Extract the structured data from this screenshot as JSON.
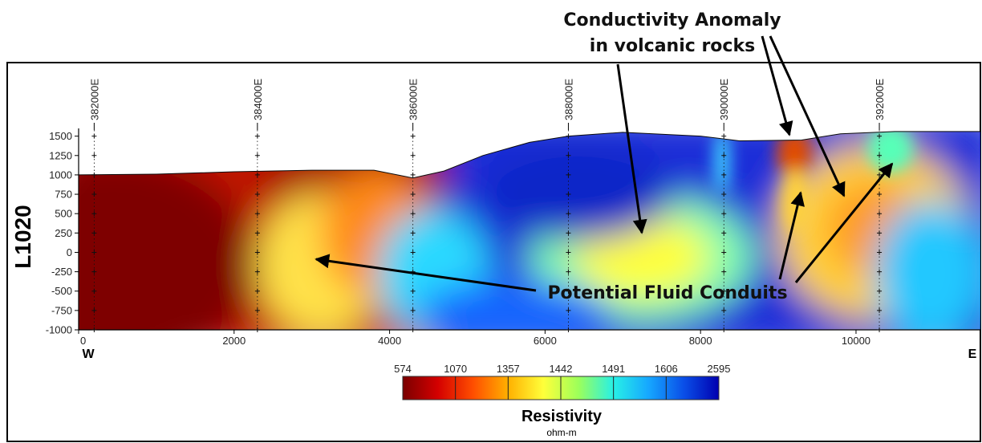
{
  "chart_data": {
    "type": "heatmap",
    "line_label": "L1020",
    "x": {
      "ticks": [
        0,
        2000,
        4000,
        6000,
        8000,
        10000
      ],
      "range": [
        0,
        11600
      ],
      "left_label": "W",
      "right_label": "E"
    },
    "y": {
      "ticks": [
        1500,
        1250,
        1000,
        750,
        500,
        250,
        0,
        -250,
        -500,
        -750,
        -1000
      ],
      "range": [
        -1000,
        1600
      ]
    },
    "easting_labels": [
      {
        "label": "382000E",
        "x": 200
      },
      {
        "label": "384000E",
        "x": 2300
      },
      {
        "label": "386000E",
        "x": 4300
      },
      {
        "label": "388000E",
        "x": 6300
      },
      {
        "label": "390000E",
        "x": 8300
      },
      {
        "label": "392000E",
        "x": 10300
      }
    ],
    "station_x": [
      200,
      2300,
      4300,
      6300,
      8300,
      10300
    ],
    "topography": [
      {
        "x": 0,
        "y": 1000
      },
      {
        "x": 1000,
        "y": 1010
      },
      {
        "x": 2000,
        "y": 1040
      },
      {
        "x": 3000,
        "y": 1060
      },
      {
        "x": 3800,
        "y": 1060
      },
      {
        "x": 4300,
        "y": 960
      },
      {
        "x": 4700,
        "y": 1050
      },
      {
        "x": 5200,
        "y": 1250
      },
      {
        "x": 5800,
        "y": 1420
      },
      {
        "x": 6300,
        "y": 1500
      },
      {
        "x": 7000,
        "y": 1550
      },
      {
        "x": 8000,
        "y": 1500
      },
      {
        "x": 8500,
        "y": 1440
      },
      {
        "x": 9300,
        "y": 1450
      },
      {
        "x": 9800,
        "y": 1530
      },
      {
        "x": 10500,
        "y": 1560
      },
      {
        "x": 11600,
        "y": 1560
      }
    ],
    "colorbar": {
      "title": "Resistivity",
      "unit": "ohm-m",
      "tick_labels": [
        "574",
        "1070",
        "1357",
        "1442",
        "1491",
        "1606",
        "2595"
      ],
      "stops": [
        "#7a0000",
        "#d40000",
        "#ff4e00",
        "#ffb000",
        "#ffff3a",
        "#9dff5a",
        "#27f0e6",
        "#16a7ff",
        "#0a4fe8",
        "#0000b0"
      ]
    },
    "annotations": {
      "anomaly_line1": "Conductivity Anomaly",
      "anomaly_line2": "in volcanic rocks",
      "conduits": "Potential Fluid Conduits"
    }
  }
}
